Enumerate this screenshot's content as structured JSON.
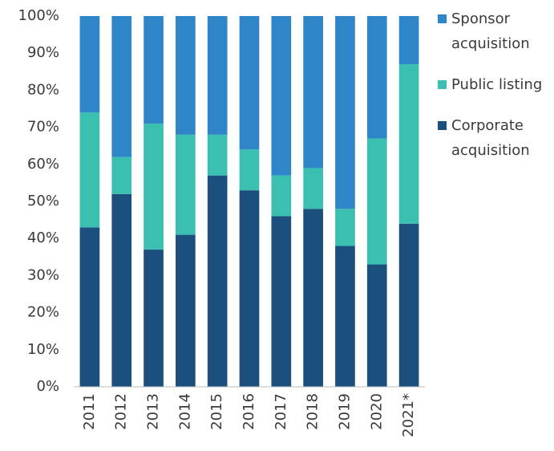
{
  "chart_data": {
    "type": "stacked_bar",
    "categories": [
      "2011",
      "2012",
      "2013",
      "2014",
      "2015",
      "2016",
      "2017",
      "2018",
      "2019",
      "2020",
      "2021*"
    ],
    "series": [
      {
        "name": "Corporate acquisition",
        "color": "#1b4f7e",
        "values": [
          43,
          52,
          37,
          41,
          57,
          53,
          46,
          48,
          38,
          33,
          44
        ]
      },
      {
        "name": "Public listing",
        "color": "#3bbfb0",
        "values": [
          31,
          10,
          34,
          27,
          11,
          11,
          11,
          11,
          10,
          34,
          43
        ]
      },
      {
        "name": "Sponsor acquisition",
        "color": "#2e86c8",
        "values": [
          26,
          38,
          29,
          32,
          32,
          36,
          43,
          41,
          52,
          33,
          13
        ]
      }
    ],
    "ylim": [
      0,
      100
    ],
    "yticks": [
      {
        "value": 0,
        "label": "0%"
      },
      {
        "value": 10,
        "label": "10%"
      },
      {
        "value": 20,
        "label": "20%"
      },
      {
        "value": 30,
        "label": "30%"
      },
      {
        "value": 40,
        "label": "40%"
      },
      {
        "value": 50,
        "label": "50%"
      },
      {
        "value": 60,
        "label": "60%"
      },
      {
        "value": 70,
        "label": "70%"
      },
      {
        "value": 80,
        "label": "80%"
      },
      {
        "value": 90,
        "label": "90%"
      },
      {
        "value": 100,
        "label": "100%"
      }
    ],
    "grid": false,
    "legend": "right"
  }
}
